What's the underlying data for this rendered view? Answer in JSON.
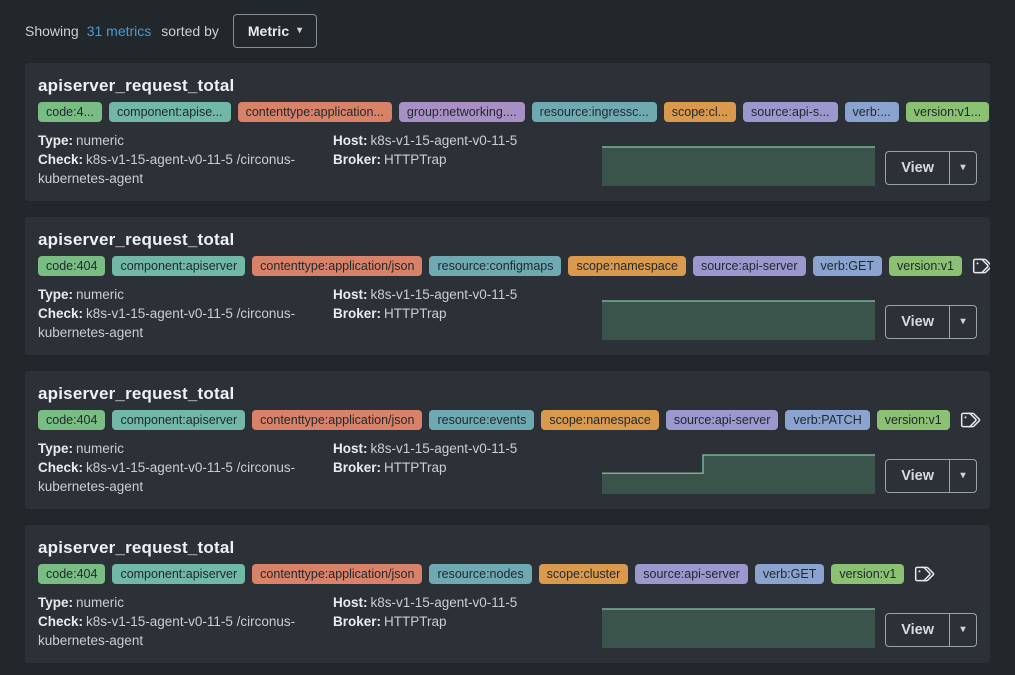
{
  "header": {
    "showing_label": "Showing",
    "metric_count": "31 metrics",
    "sorted_by_label": "sorted by",
    "sort_button_label": "Metric"
  },
  "colors": {
    "page_bg": "#22272c",
    "card_bg": "#2b3137",
    "link_blue": "#4a9ad4",
    "spark_fill": "#3a534b",
    "spark_stroke": "#79b195",
    "tags": {
      "code": "#7abd84",
      "component": "#72b8a6",
      "contenttype": "#d8826a",
      "group": "#a88fc4",
      "resource": "#6fa9b2",
      "scope": "#d99a4e",
      "source": "#9b98cd",
      "verb": "#8aa4cf",
      "version": "#8cc072"
    }
  },
  "cards": [
    {
      "title": "apiserver_request_total",
      "tags": [
        {
          "key": "code",
          "label": "code:4..."
        },
        {
          "key": "component",
          "label": "component:apise..."
        },
        {
          "key": "contenttype",
          "label": "contenttype:application..."
        },
        {
          "key": "group",
          "label": "group:networking...."
        },
        {
          "key": "resource",
          "label": "resource:ingressc..."
        },
        {
          "key": "scope",
          "label": "scope:cl..."
        },
        {
          "key": "source",
          "label": "source:api-s..."
        },
        {
          "key": "verb",
          "label": "verb:..."
        },
        {
          "key": "version",
          "label": "version:v1..."
        }
      ],
      "details": {
        "type_label": "Type:",
        "type_value": "numeric",
        "check_label": "Check:",
        "check_value": "k8s-v1-15-agent-v0-11-5 /circonus-kubernetes-agent",
        "host_label": "Host:",
        "host_value": "k8s-v1-15-agent-v0-11-5",
        "broker_label": "Broker:",
        "broker_value": "HTTPTrap"
      },
      "view_label": "View",
      "sparkline": {
        "type": "area",
        "x": [
          0,
          1
        ],
        "y": [
          1,
          1
        ]
      }
    },
    {
      "title": "apiserver_request_total",
      "tags": [
        {
          "key": "code",
          "label": "code:404"
        },
        {
          "key": "component",
          "label": "component:apiserver"
        },
        {
          "key": "contenttype",
          "label": "contenttype:application/json"
        },
        {
          "key": "resource",
          "label": "resource:configmaps"
        },
        {
          "key": "scope",
          "label": "scope:namespace"
        },
        {
          "key": "source",
          "label": "source:api-server"
        },
        {
          "key": "verb",
          "label": "verb:GET"
        },
        {
          "key": "version",
          "label": "version:v1"
        }
      ],
      "details": {
        "type_label": "Type:",
        "type_value": "numeric",
        "check_label": "Check:",
        "check_value": "k8s-v1-15-agent-v0-11-5 /circonus-kubernetes-agent",
        "host_label": "Host:",
        "host_value": "k8s-v1-15-agent-v0-11-5",
        "broker_label": "Broker:",
        "broker_value": "HTTPTrap"
      },
      "view_label": "View",
      "sparkline": {
        "type": "area",
        "x": [
          0,
          1
        ],
        "y": [
          1,
          1
        ]
      }
    },
    {
      "title": "apiserver_request_total",
      "tags": [
        {
          "key": "code",
          "label": "code:404"
        },
        {
          "key": "component",
          "label": "component:apiserver"
        },
        {
          "key": "contenttype",
          "label": "contenttype:application/json"
        },
        {
          "key": "resource",
          "label": "resource:events"
        },
        {
          "key": "scope",
          "label": "scope:namespace"
        },
        {
          "key": "source",
          "label": "source:api-server"
        },
        {
          "key": "verb",
          "label": "verb:PATCH"
        },
        {
          "key": "version",
          "label": "version:v1"
        }
      ],
      "details": {
        "type_label": "Type:",
        "type_value": "numeric",
        "check_label": "Check:",
        "check_value": "k8s-v1-15-agent-v0-11-5 /circonus-kubernetes-agent",
        "host_label": "Host:",
        "host_value": "k8s-v1-15-agent-v0-11-5",
        "broker_label": "Broker:",
        "broker_value": "HTTPTrap"
      },
      "view_label": "View",
      "sparkline": {
        "type": "area",
        "x": [
          0,
          0.37,
          0.37,
          1
        ],
        "y": [
          0.52,
          0.52,
          1,
          1
        ]
      }
    },
    {
      "title": "apiserver_request_total",
      "tags": [
        {
          "key": "code",
          "label": "code:404"
        },
        {
          "key": "component",
          "label": "component:apiserver"
        },
        {
          "key": "contenttype",
          "label": "contenttype:application/json"
        },
        {
          "key": "resource",
          "label": "resource:nodes"
        },
        {
          "key": "scope",
          "label": "scope:cluster"
        },
        {
          "key": "source",
          "label": "source:api-server"
        },
        {
          "key": "verb",
          "label": "verb:GET"
        },
        {
          "key": "version",
          "label": "version:v1"
        }
      ],
      "details": {
        "type_label": "Type:",
        "type_value": "numeric",
        "check_label": "Check:",
        "check_value": "k8s-v1-15-agent-v0-11-5 /circonus-kubernetes-agent",
        "host_label": "Host:",
        "host_value": "k8s-v1-15-agent-v0-11-5",
        "broker_label": "Broker:",
        "broker_value": "HTTPTrap"
      },
      "view_label": "View",
      "sparkline": {
        "type": "area",
        "x": [
          0,
          1
        ],
        "y": [
          1,
          1
        ]
      }
    }
  ]
}
